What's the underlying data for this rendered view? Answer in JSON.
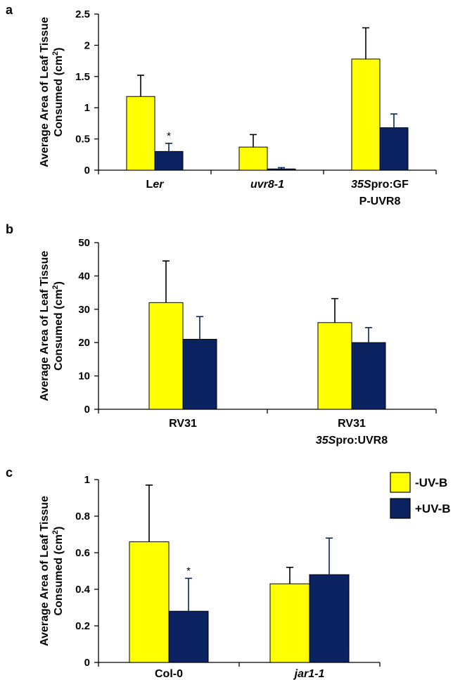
{
  "colors": {
    "minus_uvb": "#FFFF00",
    "plus_uvb": "#0A2260"
  },
  "legend": {
    "minus_label": "-UV-B",
    "plus_label": "+UV-B"
  },
  "y_label_line1": "Average Area of Leaf Tissue",
  "y_label_line2_prefix": "Consumed (cm",
  "y_label_sup": "2",
  "y_label_suffix": ")",
  "chart_data": [
    {
      "panel": "a",
      "type": "bar",
      "categories": [
        [
          {
            "t": "L",
            "i": false
          },
          {
            "t": "er",
            "i": true
          }
        ],
        [
          {
            "t": "uvr8-1",
            "i": true
          }
        ],
        [
          {
            "t": "35S",
            "i": true
          },
          {
            "t": "pro:GF",
            "i": false
          }
        ]
      ],
      "category_line2": [
        "",
        "",
        "P-UVR8"
      ],
      "ylim": [
        0,
        2.5
      ],
      "ticks": [
        "0",
        "0.5",
        "1",
        "1.5",
        "2",
        "2.5"
      ],
      "series": [
        {
          "name": "-UV-B",
          "values": [
            1.18,
            0.37,
            1.78
          ],
          "errors": [
            0.34,
            0.2,
            0.5
          ]
        },
        {
          "name": "+UV-B",
          "values": [
            0.3,
            0.02,
            0.68
          ],
          "errors": [
            0.13,
            0.02,
            0.22
          ]
        }
      ],
      "asterisks": [
        {
          "category": 0,
          "series": 1,
          "text": "*"
        }
      ]
    },
    {
      "panel": "b",
      "type": "bar",
      "categories": [
        [
          {
            "t": "RV31",
            "i": false
          }
        ],
        [
          {
            "t": "RV31",
            "i": false
          }
        ]
      ],
      "category_line2": [
        "",
        "35Spro:UVR8"
      ],
      "ylim": [
        0,
        50
      ],
      "ticks": [
        "0",
        "10",
        "20",
        "30",
        "40",
        "50"
      ],
      "series": [
        {
          "name": "-UV-B",
          "values": [
            32,
            26
          ],
          "errors": [
            12.5,
            7.2
          ]
        },
        {
          "name": "+UV-B",
          "values": [
            21,
            20
          ],
          "errors": [
            6.8,
            4.5
          ]
        }
      ],
      "asterisks": []
    },
    {
      "panel": "c",
      "type": "bar",
      "categories": [
        [
          {
            "t": "Col-0",
            "i": false
          }
        ],
        [
          {
            "t": "jar1-1",
            "i": true
          }
        ]
      ],
      "category_line2": [
        "",
        ""
      ],
      "ylim": [
        0,
        1
      ],
      "ticks": [
        "0",
        "0.2",
        "0.4",
        "0.6",
        "0.8",
        "1"
      ],
      "series": [
        {
          "name": "-UV-B",
          "values": [
            0.66,
            0.43
          ],
          "errors": [
            0.31,
            0.09
          ]
        },
        {
          "name": "+UV-B",
          "values": [
            0.28,
            0.48
          ],
          "errors": [
            0.18,
            0.2
          ]
        }
      ],
      "asterisks": [
        {
          "category": 0,
          "series": 1,
          "text": "*"
        }
      ]
    }
  ]
}
